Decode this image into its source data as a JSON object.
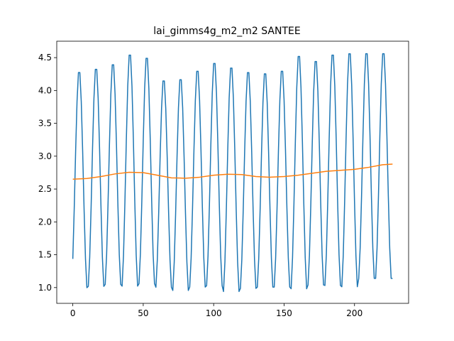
{
  "chart_data": {
    "type": "line",
    "title": "lai_gimms4g_m2_m2 SANTEE",
    "xlabel": "",
    "ylabel": "",
    "xlim": [
      -11.4,
      238.4
    ],
    "ylim": [
      0.76,
      4.75
    ],
    "xticks": [
      0,
      50,
      100,
      150,
      200
    ],
    "yticks": [
      1.0,
      1.5,
      2.0,
      2.5,
      3.0,
      3.5,
      4.0,
      4.5
    ],
    "xtick_labels": [
      "0",
      "50",
      "100",
      "150",
      "200"
    ],
    "ytick_labels": [
      "1.0",
      "1.5",
      "2.0",
      "2.5",
      "3.0",
      "3.5",
      "4.0",
      "4.5"
    ],
    "grid": false,
    "legend": "none",
    "n_points": 228,
    "series": [
      {
        "color": "#1f77b4",
        "seasonal": {
          "period": 12,
          "peak_index": 4.5,
          "peaks": [
            4.33,
            4.38,
            4.45,
            4.6,
            4.55,
            4.2,
            4.22,
            4.35,
            4.47,
            4.4,
            4.33,
            4.31,
            4.35,
            4.58,
            4.5,
            4.6,
            4.62,
            4.62,
            4.62
          ],
          "troughs": [
            0.92,
            0.94,
            0.96,
            0.99,
            0.96,
            1.0,
            0.95,
            0.9,
            0.95,
            0.97,
            0.88,
            0.93,
            0.95,
            0.95,
            0.92,
            0.98,
            0.97,
            0.95,
            1.08,
            1.08
          ]
        }
      },
      {
        "color": "#ff7f0e",
        "points": [
          [
            0,
            2.65
          ],
          [
            10,
            2.66
          ],
          [
            20,
            2.69
          ],
          [
            30,
            2.73
          ],
          [
            40,
            2.755
          ],
          [
            50,
            2.75
          ],
          [
            60,
            2.71
          ],
          [
            70,
            2.67
          ],
          [
            80,
            2.665
          ],
          [
            90,
            2.68
          ],
          [
            100,
            2.71
          ],
          [
            110,
            2.725
          ],
          [
            120,
            2.72
          ],
          [
            130,
            2.69
          ],
          [
            140,
            2.68
          ],
          [
            150,
            2.69
          ],
          [
            160,
            2.71
          ],
          [
            170,
            2.74
          ],
          [
            180,
            2.77
          ],
          [
            190,
            2.785
          ],
          [
            200,
            2.8
          ],
          [
            210,
            2.83
          ],
          [
            220,
            2.87
          ],
          [
            227,
            2.88
          ]
        ]
      }
    ]
  }
}
